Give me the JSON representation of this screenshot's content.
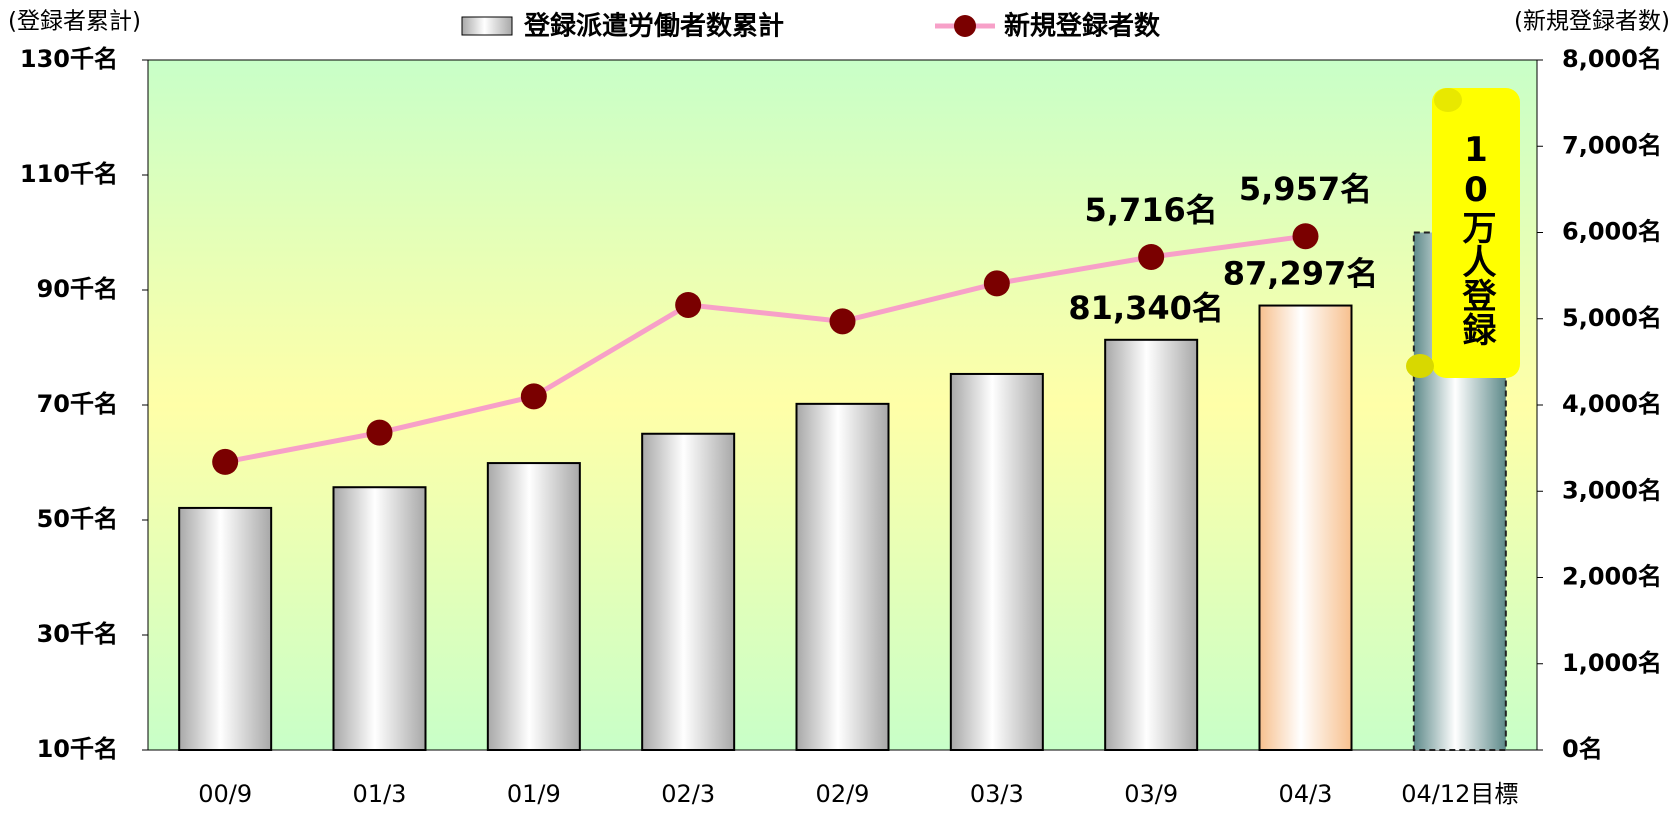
{
  "chart_data": {
    "type": "bar_line",
    "y_title": "(登録者累計)",
    "y2_title": "(新規登録者数)",
    "annotation": "10万人登録",
    "categories": [
      "00/9",
      "01/3",
      "01/9",
      "02/3",
      "02/9",
      "03/3",
      "03/9",
      "04/3",
      "04/12目標"
    ],
    "series": [
      {
        "name": "登録派遣労働者数累計",
        "color": "#a8a8a8",
        "type": "bar",
        "values": [
          52.1,
          55.7,
          59.9,
          65,
          70.2,
          75.4,
          81.34,
          87.297,
          100
        ],
        "value_labels": [
          null,
          null,
          null,
          null,
          null,
          null,
          "81,340名",
          "87,297名",
          null
        ],
        "colors": [
          "#a8a8a8",
          "#a8a8a8",
          "#a8a8a8",
          "#a8a8a8",
          "#a8a8a8",
          "#a8a8a8",
          "#a8a8a8",
          "#f7c08e",
          "#5e8a8a"
        ]
      },
      {
        "name": "新規登録者数",
        "color": "#f7a0c8",
        "marker_color": "#7a0000",
        "type": "line",
        "axis": "y2",
        "values": [
          3340,
          3680,
          4100,
          5160,
          4970,
          5410,
          5716,
          5957,
          null
        ],
        "value_labels": [
          null,
          null,
          null,
          null,
          null,
          null,
          "5,716名",
          "5,957名",
          null
        ]
      }
    ],
    "ylim": [
      10,
      130
    ],
    "yticks": [
      {
        "value": 10,
        "label": "10千名"
      },
      {
        "value": 30,
        "label": "30千名"
      },
      {
        "value": 50,
        "label": "50千名"
      },
      {
        "value": 70,
        "label": "70千名"
      },
      {
        "value": 90,
        "label": "90千名"
      },
      {
        "value": 110,
        "label": "110千名"
      },
      {
        "value": 130,
        "label": "130千名"
      }
    ],
    "y2lim": [
      0,
      8000
    ],
    "y2ticks": [
      {
        "value": 0,
        "label": "0名"
      },
      {
        "value": 1000,
        "label": "1,000名"
      },
      {
        "value": 2000,
        "label": "2,000名"
      },
      {
        "value": 3000,
        "label": "3,000名"
      },
      {
        "value": 4000,
        "label": "4,000名"
      },
      {
        "value": 5000,
        "label": "5,000名"
      },
      {
        "value": 6000,
        "label": "6,000名"
      },
      {
        "value": 7000,
        "label": "7,000名"
      },
      {
        "value": 8000,
        "label": "8,000名"
      }
    ],
    "grid": false
  }
}
